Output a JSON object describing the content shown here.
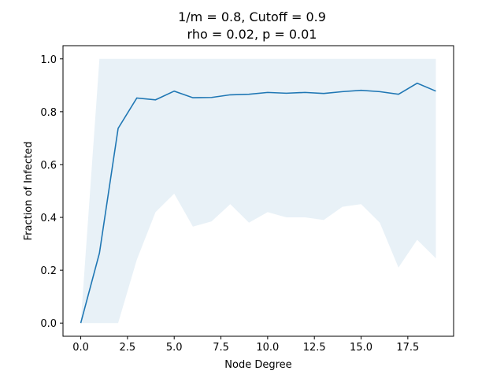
{
  "chart_data": {
    "type": "line",
    "title_line1": "1/m = 0.8, Cutoff = 0.9",
    "title_line2": "rho = 0.02, p = 0.01",
    "xlabel": "Node Degree",
    "ylabel": "Fraction of Infected",
    "xlim": [
      -0.95,
      19.95
    ],
    "ylim": [
      -0.05,
      1.05
    ],
    "xticks": [
      0.0,
      2.5,
      5.0,
      7.5,
      10.0,
      12.5,
      15.0,
      17.5
    ],
    "xtick_labels": [
      "0.0",
      "2.5",
      "5.0",
      "7.5",
      "10.0",
      "12.5",
      "15.0",
      "17.5"
    ],
    "yticks": [
      0.0,
      0.2,
      0.4,
      0.6,
      0.8,
      1.0
    ],
    "ytick_labels": [
      "0.0",
      "0.2",
      "0.4",
      "0.6",
      "0.8",
      "1.0"
    ],
    "grid": false,
    "series": [
      {
        "x": [
          0,
          1,
          2,
          3,
          4,
          5,
          6,
          7,
          8,
          9,
          10,
          11,
          12,
          13,
          14,
          15,
          16,
          17,
          18,
          19
        ],
        "values": [
          0.0,
          0.265,
          0.737,
          0.852,
          0.845,
          0.878,
          0.853,
          0.854,
          0.864,
          0.866,
          0.873,
          0.87,
          0.873,
          0.869,
          0.876,
          0.881,
          0.876,
          0.866,
          0.908,
          0.878
        ],
        "color": "#1f77b4"
      }
    ],
    "band": {
      "x": [
        0,
        1,
        2,
        3,
        4,
        5,
        6,
        7,
        8,
        9,
        10,
        11,
        12,
        13,
        14,
        15,
        16,
        17,
        18,
        19
      ],
      "lower": [
        0.0,
        0.0,
        0.0,
        0.24,
        0.42,
        0.49,
        0.365,
        0.385,
        0.45,
        0.38,
        0.42,
        0.4,
        0.4,
        0.39,
        0.44,
        0.45,
        0.38,
        0.21,
        0.315,
        0.245
      ],
      "upper": [
        0.0,
        1.0,
        1.0,
        1.0,
        1.0,
        1.0,
        1.0,
        1.0,
        1.0,
        1.0,
        1.0,
        1.0,
        1.0,
        1.0,
        1.0,
        1.0,
        1.0,
        1.0,
        1.0,
        1.0
      ],
      "color": "#1f77b4",
      "opacity": 0.1
    }
  }
}
